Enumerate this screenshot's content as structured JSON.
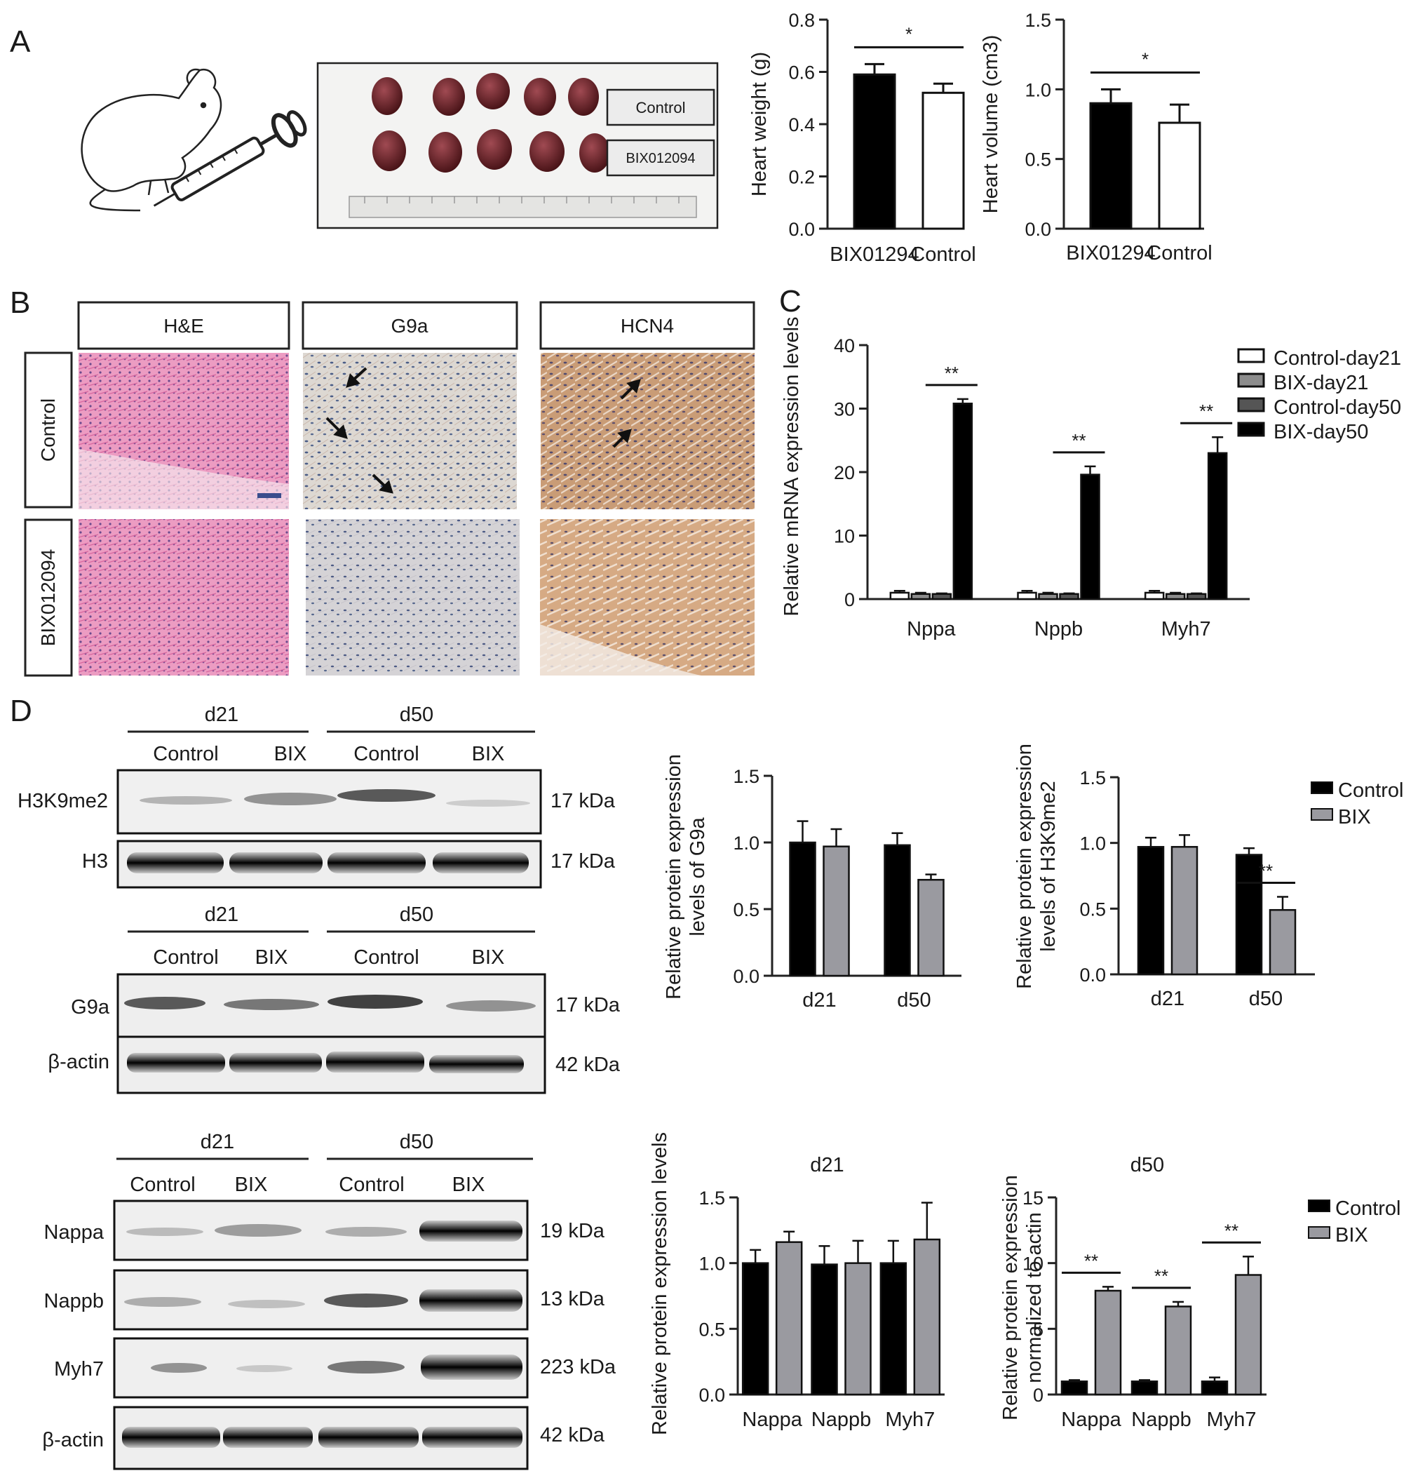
{
  "panels": {
    "A": "A",
    "B": "B",
    "C": "C",
    "D": "D"
  },
  "colors": {
    "control": "#ffffff",
    "bix": "#000000",
    "bix_d": "#9a9aa0",
    "control_d21_c": "#ffffff",
    "bix_d21_c": "#8c8c8c",
    "control_d50_c": "#555555",
    "bix_d50_c": "#000000",
    "he_stain": "#e48ab4",
    "ihc_bg": "#ddd9d6",
    "hcn4_stain": "#c79a73"
  },
  "panel_a": {
    "photo_labels": [
      "Control",
      "BIX012094"
    ],
    "icon": "mouse-with-syringe-icon"
  },
  "panel_b": {
    "column_headers": [
      "H&E",
      "G9a",
      "HCN4"
    ],
    "row_headers": [
      "Control",
      "BIX012094"
    ]
  },
  "panel_d_blots": {
    "group1": {
      "timepoints": [
        "d21",
        "d50"
      ],
      "conditions": [
        "Control",
        "BIX",
        "Control",
        "BIX"
      ],
      "rows": [
        {
          "name": "H3K9me2",
          "kda": "17 kDa"
        },
        {
          "name": "H3",
          "kda": "17 kDa"
        }
      ]
    },
    "group2": {
      "timepoints": [
        "d21",
        "d50"
      ],
      "conditions": [
        "Control",
        "BIX",
        "Control",
        "BIX"
      ],
      "rows": [
        {
          "name": "G9a",
          "kda": "17 kDa"
        },
        {
          "name": "β-actin",
          "kda": "42 kDa"
        }
      ]
    },
    "group3": {
      "timepoints": [
        "d21",
        "d50"
      ],
      "conditions": [
        "Control",
        "BIX",
        "Control",
        "BIX"
      ],
      "rows": [
        {
          "name": "Nappa",
          "kda": "19 kDa"
        },
        {
          "name": "Nappb",
          "kda": "13 kDa"
        },
        {
          "name": "Myh7",
          "kda": "223 kDa"
        },
        {
          "name": "β-actin",
          "kda": "42 kDa"
        }
      ]
    }
  },
  "chart_data": [
    {
      "id": "heart-weight",
      "type": "bar",
      "categories": [
        "BIX01294",
        "Control"
      ],
      "values": [
        0.59,
        0.52
      ],
      "errors": [
        0.04,
        0.035
      ],
      "ylabel": "Heart weight (g)",
      "ylim": [
        0,
        0.8
      ],
      "yticks": [
        "0.0",
        "0.2",
        "0.4",
        "0.6",
        "0.8"
      ],
      "significance": [
        {
          "between": [
            0,
            1
          ],
          "label": "*"
        }
      ]
    },
    {
      "id": "heart-volume",
      "type": "bar",
      "categories": [
        "BIX01294",
        "Control"
      ],
      "values": [
        0.9,
        0.76
      ],
      "errors": [
        0.1,
        0.13
      ],
      "ylabel": "Heart volume (cm3)",
      "ylim": [
        0,
        1.5
      ],
      "yticks": [
        "0.0",
        "0.5",
        "1.0",
        "1.5"
      ],
      "significance": [
        {
          "between": [
            0,
            1
          ],
          "label": "*"
        }
      ]
    },
    {
      "id": "mrna",
      "type": "bar",
      "categories": [
        "Nppa",
        "Nppb",
        "Myh7"
      ],
      "series": [
        {
          "name": "Control-day21",
          "values": [
            1.0,
            1.0,
            1.0
          ],
          "errors": [
            0.3,
            0.3,
            0.3
          ]
        },
        {
          "name": "BIX-day21",
          "values": [
            0.8,
            0.8,
            0.8
          ],
          "errors": [
            0.2,
            0.2,
            0.2
          ]
        },
        {
          "name": "Control-day50",
          "values": [
            0.8,
            0.8,
            0.8
          ],
          "errors": [
            0.1,
            0.1,
            0.1
          ]
        },
        {
          "name": "BIX-day50",
          "values": [
            30.8,
            19.6,
            23.0
          ],
          "errors": [
            0.7,
            1.3,
            2.5
          ]
        }
      ],
      "ylabel": "Relative mRNA expression levels",
      "ylim": [
        0,
        40
      ],
      "yticks": [
        "0",
        "10",
        "20",
        "30",
        "40"
      ],
      "significance": [
        {
          "category": 0,
          "label": "**"
        },
        {
          "category": 1,
          "label": "**"
        },
        {
          "category": 2,
          "label": "**"
        }
      ]
    },
    {
      "id": "g9a-protein",
      "type": "bar",
      "categories": [
        "d21",
        "d50"
      ],
      "series": [
        {
          "name": "Control",
          "values": [
            1.0,
            0.98
          ],
          "errors": [
            0.16,
            0.09
          ]
        },
        {
          "name": "BIX",
          "values": [
            0.97,
            0.72
          ],
          "errors": [
            0.13,
            0.04
          ]
        }
      ],
      "ylabel": "Relative protein expression levels of G9a",
      "ylim": [
        0,
        1.5
      ],
      "yticks": [
        "0.0",
        "0.5",
        "1.0",
        "1.5"
      ]
    },
    {
      "id": "h3k9me2-protein",
      "type": "bar",
      "categories": [
        "d21",
        "d50"
      ],
      "series": [
        {
          "name": "Control",
          "values": [
            0.97,
            0.91
          ],
          "errors": [
            0.07,
            0.05
          ]
        },
        {
          "name": "BIX",
          "values": [
            0.97,
            0.49
          ],
          "errors": [
            0.09,
            0.1
          ]
        }
      ],
      "ylabel": "Relative protein expression levels of H3K9me2",
      "ylim": [
        0,
        1.5
      ],
      "yticks": [
        "0.0",
        "0.5",
        "1.0",
        "1.5"
      ],
      "legend": [
        "Control",
        "BIX"
      ],
      "significance": [
        {
          "category": 1,
          "label": "**"
        }
      ]
    },
    {
      "id": "d21-protein",
      "type": "bar",
      "title": "d21",
      "categories": [
        "Nappa",
        "Nappb",
        "Myh7"
      ],
      "series": [
        {
          "name": "Control",
          "values": [
            1.0,
            0.99,
            1.0
          ],
          "errors": [
            0.1,
            0.14,
            0.17
          ]
        },
        {
          "name": "BIX",
          "values": [
            1.16,
            1.0,
            1.18
          ],
          "errors": [
            0.08,
            0.17,
            0.28
          ]
        }
      ],
      "ylabel": "Relative protein expression levels",
      "ylim": [
        0,
        1.5
      ],
      "yticks": [
        "0.0",
        "0.5",
        "1.0",
        "1.5"
      ]
    },
    {
      "id": "d50-protein",
      "type": "bar",
      "title": "d50",
      "categories": [
        "Nappa",
        "Nappb",
        "Myh7"
      ],
      "series": [
        {
          "name": "Control",
          "values": [
            1.0,
            1.0,
            1.0
          ],
          "errors": [
            0.1,
            0.1,
            0.3
          ]
        },
        {
          "name": "BIX",
          "values": [
            7.9,
            6.7,
            9.1
          ],
          "errors": [
            0.3,
            0.35,
            1.4
          ]
        }
      ],
      "ylabel": "Relative protein expression normalized to actin",
      "ylim": [
        0,
        15
      ],
      "yticks": [
        "0",
        "5",
        "10",
        "15"
      ],
      "legend": [
        "Control",
        "BIX"
      ],
      "significance": [
        {
          "category": 0,
          "label": "**"
        },
        {
          "category": 1,
          "label": "**"
        },
        {
          "category": 2,
          "label": "**"
        }
      ]
    }
  ]
}
